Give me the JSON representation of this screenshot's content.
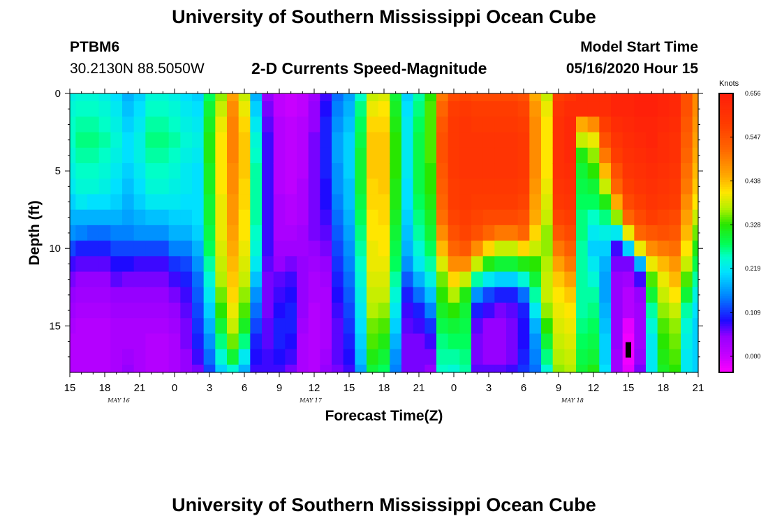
{
  "header": {
    "title_top": "University of Southern Mississippi Ocean Cube",
    "station_id": "PTBM6",
    "station_coords": "30.2130N 88.5050W",
    "chart_title": "2-D Currents Speed-Magnitude",
    "model_start_label": "Model Start Time",
    "model_start_value": "05/16/2020 Hour 15",
    "title_bottom": "University of Southern Mississippi Ocean Cube"
  },
  "chart_data": {
    "type": "heatmap",
    "title": "2-D Currents Speed-Magnitude",
    "xlabel": "Forecast Time(Z)",
    "ylabel": "Depth (ft)",
    "colorbar_unit": "Knots",
    "x_tick_labels": [
      "15",
      "18",
      "21",
      "0",
      "3",
      "6",
      "9",
      "12",
      "15",
      "18",
      "21",
      "0",
      "3",
      "6",
      "9",
      "12",
      "15",
      "18",
      "21"
    ],
    "date_labels": [
      {
        "text": "MAY 16",
        "at_tick": 1.4
      },
      {
        "text": "MAY 17",
        "at_tick": 6.9
      },
      {
        "text": "MAY 18",
        "at_tick": 14.4
      }
    ],
    "y_ticks": [
      0,
      5,
      10,
      15
    ],
    "ylim": [
      0,
      18
    ],
    "colorbar_ticks": [
      "0.656",
      "0.547",
      "0.438",
      "0.328",
      "0.219",
      "0.109",
      "0.000"
    ],
    "colorbar_range": [
      -0.04,
      0.656
    ],
    "hours_total": 54,
    "depth_levels": [
      0,
      1,
      2,
      3,
      4,
      5,
      6,
      7,
      8,
      9,
      10,
      11,
      12,
      13,
      14,
      15,
      16,
      17,
      18
    ],
    "missing_cell": {
      "hour": 48,
      "depth": 16.5
    },
    "anchor_hours": [
      0,
      1,
      2,
      3,
      4,
      5,
      6,
      7,
      8,
      9,
      10,
      11,
      12,
      13,
      14,
      15,
      16,
      17,
      18,
      19,
      20,
      21,
      22,
      23,
      24,
      25,
      26,
      27,
      28,
      29,
      30,
      31,
      32,
      33,
      34,
      35,
      36,
      37,
      38,
      39,
      40,
      41,
      42,
      43,
      44,
      45,
      46,
      47,
      48,
      49,
      50,
      51,
      52,
      53,
      54
    ],
    "profiles": [
      [
        0.23,
        0.24,
        0.25,
        0.25,
        0.24,
        0.23,
        0.22,
        0.2,
        0.18,
        0.16,
        0.12,
        0.08,
        0.06,
        0.05,
        0.04,
        0.03,
        0.02,
        0.02,
        0.02
      ],
      [
        0.24,
        0.25,
        0.26,
        0.27,
        0.26,
        0.25,
        0.24,
        0.22,
        0.18,
        0.15,
        0.1,
        0.07,
        0.05,
        0.04,
        0.03,
        0.02,
        0.02,
        0.02,
        0.02
      ],
      [
        0.24,
        0.25,
        0.26,
        0.27,
        0.26,
        0.25,
        0.24,
        0.21,
        0.18,
        0.14,
        0.1,
        0.07,
        0.05,
        0.04,
        0.03,
        0.02,
        0.02,
        0.02,
        0.02
      ],
      [
        0.23,
        0.24,
        0.25,
        0.26,
        0.25,
        0.24,
        0.23,
        0.21,
        0.18,
        0.14,
        0.1,
        0.07,
        0.05,
        0.04,
        0.03,
        0.02,
        0.02,
        0.02,
        0.02
      ],
      [
        0.21,
        0.22,
        0.23,
        0.24,
        0.23,
        0.22,
        0.21,
        0.2,
        0.18,
        0.15,
        0.12,
        0.09,
        0.07,
        0.05,
        0.04,
        0.03,
        0.03,
        0.03,
        0.03
      ],
      [
        0.18,
        0.19,
        0.2,
        0.21,
        0.21,
        0.2,
        0.19,
        0.18,
        0.17,
        0.15,
        0.12,
        0.09,
        0.06,
        0.05,
        0.04,
        0.03,
        0.03,
        0.04,
        0.05
      ],
      [
        0.2,
        0.21,
        0.22,
        0.23,
        0.23,
        0.22,
        0.21,
        0.2,
        0.18,
        0.16,
        0.12,
        0.08,
        0.06,
        0.05,
        0.04,
        0.03,
        0.03,
        0.03,
        0.03
      ],
      [
        0.24,
        0.25,
        0.26,
        0.27,
        0.26,
        0.25,
        0.24,
        0.22,
        0.19,
        0.16,
        0.12,
        0.08,
        0.06,
        0.05,
        0.04,
        0.03,
        0.02,
        0.02,
        0.02
      ],
      [
        0.24,
        0.25,
        0.26,
        0.27,
        0.26,
        0.25,
        0.24,
        0.22,
        0.19,
        0.16,
        0.12,
        0.08,
        0.06,
        0.05,
        0.04,
        0.03,
        0.02,
        0.02,
        0.02
      ],
      [
        0.23,
        0.24,
        0.25,
        0.26,
        0.25,
        0.24,
        0.23,
        0.22,
        0.2,
        0.18,
        0.15,
        0.11,
        0.08,
        0.06,
        0.05,
        0.04,
        0.03,
        0.03,
        0.03
      ],
      [
        0.21,
        0.22,
        0.23,
        0.24,
        0.23,
        0.22,
        0.22,
        0.21,
        0.2,
        0.18,
        0.15,
        0.12,
        0.1,
        0.08,
        0.07,
        0.06,
        0.06,
        0.05,
        0.05
      ],
      [
        0.2,
        0.21,
        0.22,
        0.23,
        0.22,
        0.21,
        0.21,
        0.21,
        0.21,
        0.2,
        0.18,
        0.16,
        0.14,
        0.13,
        0.12,
        0.11,
        0.1,
        0.08,
        0.06
      ],
      [
        0.28,
        0.3,
        0.31,
        0.32,
        0.32,
        0.31,
        0.31,
        0.3,
        0.3,
        0.29,
        0.28,
        0.26,
        0.24,
        0.22,
        0.2,
        0.18,
        0.16,
        0.14,
        0.12
      ],
      [
        0.36,
        0.38,
        0.4,
        0.41,
        0.41,
        0.41,
        0.41,
        0.4,
        0.4,
        0.4,
        0.39,
        0.38,
        0.37,
        0.35,
        0.33,
        0.3,
        0.27,
        0.24,
        0.2
      ],
      [
        0.46,
        0.48,
        0.49,
        0.49,
        0.49,
        0.48,
        0.48,
        0.47,
        0.47,
        0.46,
        0.45,
        0.44,
        0.43,
        0.42,
        0.4,
        0.38,
        0.35,
        0.3,
        0.24
      ],
      [
        0.38,
        0.4,
        0.42,
        0.43,
        0.43,
        0.43,
        0.42,
        0.42,
        0.41,
        0.41,
        0.4,
        0.39,
        0.38,
        0.36,
        0.34,
        0.31,
        0.27,
        0.22,
        0.18
      ],
      [
        0.18,
        0.2,
        0.22,
        0.24,
        0.25,
        0.26,
        0.26,
        0.26,
        0.26,
        0.25,
        0.24,
        0.22,
        0.19,
        0.16,
        0.14,
        0.12,
        0.1,
        0.09,
        0.08
      ],
      [
        0.05,
        0.06,
        0.07,
        0.08,
        0.08,
        0.08,
        0.08,
        0.08,
        0.08,
        0.08,
        0.08,
        0.07,
        0.06,
        0.06,
        0.06,
        0.07,
        0.07,
        0.08,
        0.08
      ],
      [
        0.01,
        0.01,
        0.02,
        0.02,
        0.02,
        0.02,
        0.02,
        0.03,
        0.03,
        0.03,
        0.04,
        0.05,
        0.07,
        0.08,
        0.09,
        0.1,
        0.1,
        0.09,
        0.08
      ],
      [
        0.0,
        0.0,
        0.01,
        0.01,
        0.01,
        0.01,
        0.01,
        0.02,
        0.02,
        0.03,
        0.04,
        0.06,
        0.08,
        0.09,
        0.1,
        0.1,
        0.09,
        0.08,
        0.06
      ],
      [
        0.01,
        0.01,
        0.02,
        0.02,
        0.02,
        0.02,
        0.03,
        0.03,
        0.03,
        0.04,
        0.04,
        0.05,
        0.05,
        0.05,
        0.05,
        0.04,
        0.03,
        0.03,
        0.03
      ],
      [
        0.04,
        0.05,
        0.05,
        0.06,
        0.06,
        0.06,
        0.06,
        0.06,
        0.06,
        0.06,
        0.05,
        0.04,
        0.03,
        0.03,
        0.02,
        0.02,
        0.02,
        0.02,
        0.02
      ],
      [
        0.08,
        0.09,
        0.1,
        0.1,
        0.1,
        0.1,
        0.09,
        0.09,
        0.08,
        0.07,
        0.06,
        0.05,
        0.04,
        0.03,
        0.03,
        0.03,
        0.03,
        0.04,
        0.05
      ],
      [
        0.14,
        0.15,
        0.16,
        0.17,
        0.17,
        0.16,
        0.16,
        0.15,
        0.14,
        0.13,
        0.12,
        0.11,
        0.1,
        0.09,
        0.08,
        0.07,
        0.07,
        0.07,
        0.06
      ],
      [
        0.17,
        0.18,
        0.19,
        0.2,
        0.2,
        0.2,
        0.19,
        0.19,
        0.18,
        0.17,
        0.16,
        0.15,
        0.14,
        0.13,
        0.12,
        0.11,
        0.1,
        0.09,
        0.08
      ],
      [
        0.25,
        0.27,
        0.28,
        0.29,
        0.3,
        0.3,
        0.3,
        0.29,
        0.28,
        0.27,
        0.26,
        0.25,
        0.24,
        0.23,
        0.22,
        0.21,
        0.2,
        0.19,
        0.17
      ],
      [
        0.38,
        0.4,
        0.42,
        0.43,
        0.43,
        0.43,
        0.42,
        0.42,
        0.41,
        0.41,
        0.4,
        0.4,
        0.39,
        0.38,
        0.37,
        0.35,
        0.34,
        0.32,
        0.3
      ],
      [
        0.39,
        0.41,
        0.42,
        0.43,
        0.43,
        0.43,
        0.43,
        0.42,
        0.42,
        0.41,
        0.41,
        0.4,
        0.39,
        0.38,
        0.36,
        0.34,
        0.32,
        0.3,
        0.28
      ],
      [
        0.3,
        0.31,
        0.32,
        0.33,
        0.33,
        0.33,
        0.32,
        0.32,
        0.31,
        0.3,
        0.29,
        0.28,
        0.26,
        0.24,
        0.22,
        0.2,
        0.18,
        0.16,
        0.15
      ],
      [
        0.2,
        0.21,
        0.22,
        0.22,
        0.22,
        0.22,
        0.21,
        0.21,
        0.2,
        0.19,
        0.18,
        0.16,
        0.13,
        0.1,
        0.08,
        0.07,
        0.06,
        0.06,
        0.06
      ],
      [
        0.26,
        0.27,
        0.28,
        0.29,
        0.29,
        0.29,
        0.29,
        0.28,
        0.27,
        0.26,
        0.24,
        0.22,
        0.18,
        0.14,
        0.1,
        0.08,
        0.06,
        0.06,
        0.06
      ],
      [
        0.33,
        0.34,
        0.34,
        0.34,
        0.34,
        0.33,
        0.33,
        0.32,
        0.31,
        0.3,
        0.28,
        0.26,
        0.23,
        0.19,
        0.15,
        0.11,
        0.08,
        0.06,
        0.05
      ],
      [
        0.5,
        0.52,
        0.54,
        0.55,
        0.55,
        0.54,
        0.53,
        0.52,
        0.51,
        0.48,
        0.44,
        0.39,
        0.35,
        0.33,
        0.31,
        0.29,
        0.27,
        0.26,
        0.25
      ],
      [
        0.56,
        0.58,
        0.59,
        0.59,
        0.59,
        0.59,
        0.58,
        0.58,
        0.57,
        0.55,
        0.52,
        0.48,
        0.42,
        0.37,
        0.33,
        0.3,
        0.28,
        0.26,
        0.24
      ],
      [
        0.57,
        0.59,
        0.6,
        0.6,
        0.6,
        0.6,
        0.59,
        0.59,
        0.58,
        0.57,
        0.54,
        0.48,
        0.38,
        0.32,
        0.3,
        0.29,
        0.28,
        0.27,
        0.26
      ],
      [
        0.56,
        0.58,
        0.59,
        0.6,
        0.6,
        0.6,
        0.59,
        0.58,
        0.57,
        0.55,
        0.48,
        0.38,
        0.26,
        0.16,
        0.1,
        0.07,
        0.06,
        0.06,
        0.07
      ],
      [
        0.56,
        0.58,
        0.59,
        0.6,
        0.6,
        0.6,
        0.59,
        0.58,
        0.56,
        0.52,
        0.42,
        0.32,
        0.22,
        0.12,
        0.08,
        0.05,
        0.05,
        0.05,
        0.07
      ],
      [
        0.56,
        0.58,
        0.59,
        0.6,
        0.6,
        0.6,
        0.59,
        0.58,
        0.56,
        0.5,
        0.38,
        0.3,
        0.2,
        0.1,
        0.06,
        0.05,
        0.05,
        0.05,
        0.07
      ],
      [
        0.56,
        0.58,
        0.59,
        0.6,
        0.6,
        0.6,
        0.59,
        0.58,
        0.56,
        0.5,
        0.38,
        0.3,
        0.2,
        0.1,
        0.07,
        0.06,
        0.06,
        0.06,
        0.08
      ],
      [
        0.55,
        0.57,
        0.58,
        0.59,
        0.59,
        0.59,
        0.58,
        0.57,
        0.55,
        0.52,
        0.42,
        0.32,
        0.24,
        0.14,
        0.1,
        0.09,
        0.09,
        0.1,
        0.11
      ],
      [
        0.45,
        0.47,
        0.48,
        0.48,
        0.48,
        0.48,
        0.47,
        0.46,
        0.45,
        0.42,
        0.38,
        0.33,
        0.3,
        0.26,
        0.22,
        0.18,
        0.16,
        0.15,
        0.14
      ],
      [
        0.38,
        0.4,
        0.41,
        0.41,
        0.41,
        0.41,
        0.4,
        0.39,
        0.38,
        0.36,
        0.36,
        0.37,
        0.38,
        0.38,
        0.36,
        0.33,
        0.3,
        0.27,
        0.24
      ],
      [
        0.58,
        0.6,
        0.61,
        0.61,
        0.61,
        0.61,
        0.6,
        0.59,
        0.57,
        0.54,
        0.5,
        0.46,
        0.43,
        0.41,
        0.4,
        0.39,
        0.38,
        0.37,
        0.36
      ],
      [
        0.6,
        0.62,
        0.63,
        0.63,
        0.63,
        0.62,
        0.61,
        0.6,
        0.58,
        0.56,
        0.53,
        0.5,
        0.46,
        0.43,
        0.41,
        0.4,
        0.39,
        0.38,
        0.37
      ],
      [
        0.62,
        0.62,
        0.45,
        0.38,
        0.32,
        0.3,
        0.29,
        0.28,
        0.27,
        0.27,
        0.26,
        0.26,
        0.26,
        0.26,
        0.26,
        0.27,
        0.28,
        0.29,
        0.3
      ],
      [
        0.62,
        0.62,
        0.48,
        0.4,
        0.36,
        0.33,
        0.3,
        0.28,
        0.25,
        0.22,
        0.2,
        0.22,
        0.24,
        0.26,
        0.27,
        0.28,
        0.29,
        0.3,
        0.32
      ],
      [
        0.62,
        0.62,
        0.58,
        0.55,
        0.5,
        0.44,
        0.38,
        0.32,
        0.27,
        0.23,
        0.2,
        0.18,
        0.17,
        0.17,
        0.18,
        0.19,
        0.2,
        0.2,
        0.21
      ],
      [
        0.64,
        0.64,
        0.62,
        0.6,
        0.58,
        0.55,
        0.52,
        0.45,
        0.36,
        0.22,
        0.08,
        0.06,
        0.05,
        0.05,
        0.05,
        0.05,
        0.05,
        0.04,
        0.04
      ],
      [
        0.64,
        0.64,
        0.63,
        0.62,
        0.61,
        0.6,
        0.58,
        0.56,
        0.52,
        0.4,
        0.2,
        0.06,
        0.04,
        0.02,
        0.02,
        -0.02,
        -0.03,
        -0.03,
        -0.02
      ],
      [
        0.65,
        0.65,
        0.64,
        0.63,
        0.62,
        0.61,
        0.6,
        0.58,
        0.56,
        0.52,
        0.4,
        0.18,
        0.08,
        0.05,
        0.04,
        0.04,
        0.04,
        0.05,
        0.06
      ],
      [
        0.65,
        0.65,
        0.64,
        0.64,
        0.63,
        0.62,
        0.61,
        0.6,
        0.58,
        0.54,
        0.48,
        0.4,
        0.34,
        0.3,
        0.26,
        0.24,
        0.22,
        0.22,
        0.22
      ],
      [
        0.64,
        0.64,
        0.63,
        0.62,
        0.62,
        0.61,
        0.6,
        0.59,
        0.57,
        0.55,
        0.5,
        0.44,
        0.4,
        0.38,
        0.36,
        0.34,
        0.33,
        0.32,
        0.31
      ],
      [
        0.63,
        0.63,
        0.62,
        0.61,
        0.61,
        0.6,
        0.59,
        0.58,
        0.56,
        0.54,
        0.51,
        0.47,
        0.44,
        0.41,
        0.38,
        0.36,
        0.35,
        0.34,
        0.33
      ],
      [
        0.55,
        0.55,
        0.54,
        0.53,
        0.52,
        0.51,
        0.5,
        0.48,
        0.46,
        0.44,
        0.41,
        0.38,
        0.34,
        0.3,
        0.26,
        0.24,
        0.23,
        0.22,
        0.22
      ],
      [
        0.48,
        0.48,
        0.47,
        0.46,
        0.45,
        0.44,
        0.43,
        0.41,
        0.38,
        0.35,
        0.32,
        0.29,
        0.26,
        0.23,
        0.21,
        0.2,
        0.2,
        0.2,
        0.2
      ]
    ]
  }
}
